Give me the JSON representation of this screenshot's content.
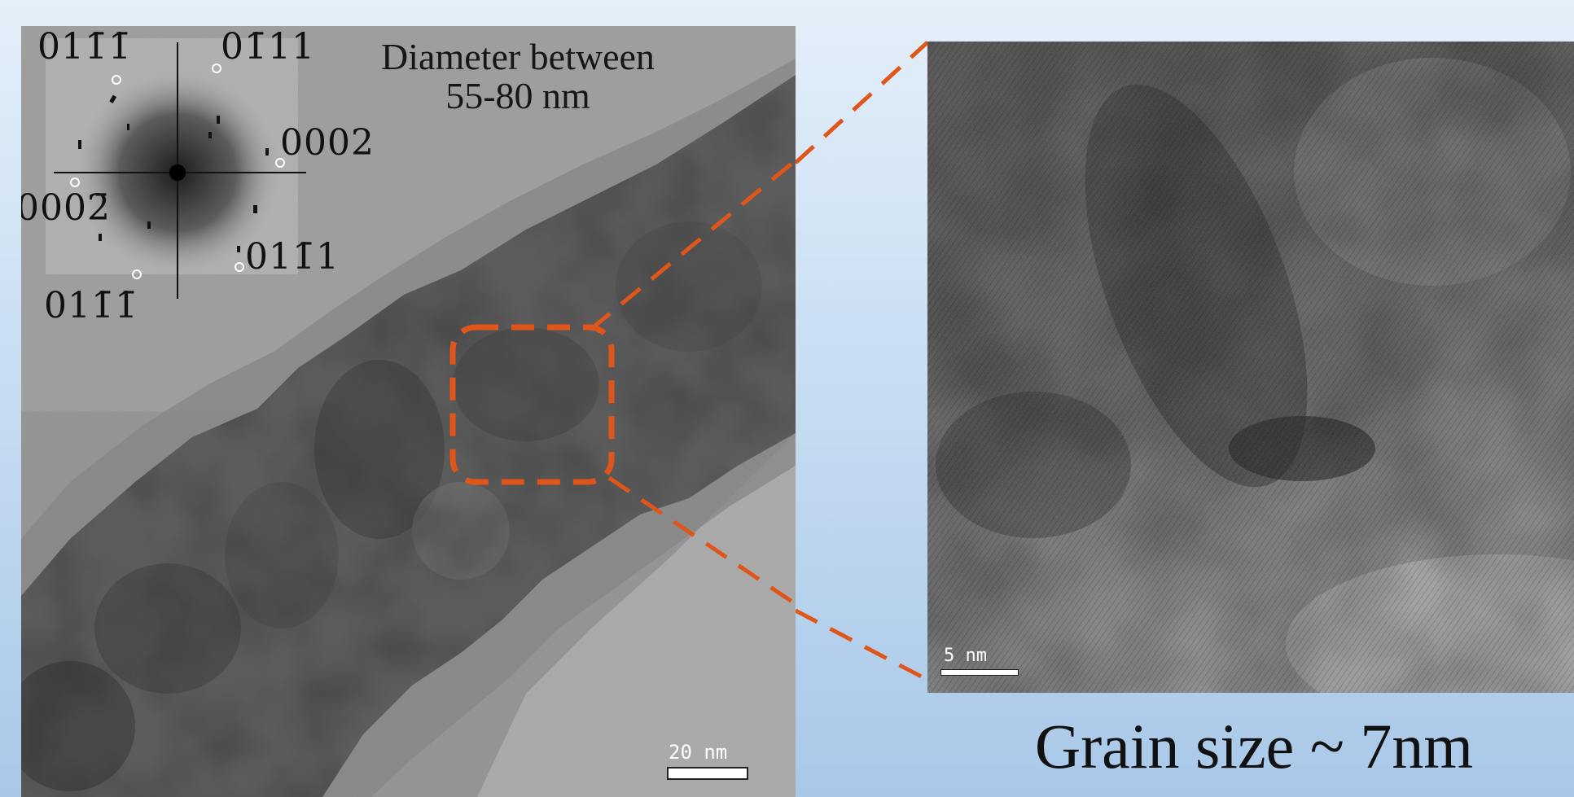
{
  "main_image": {
    "caption_line1": "Diameter between",
    "caption_line2": "55-80 nm",
    "scale_label": "20 nm",
    "diffraction_labels": {
      "top_left": "011̄1̄",
      "top_right": "01̄11",
      "right": "0002",
      "left": "0002̄",
      "lower_right": "011̄1",
      "bottom_left": "011̄1̄"
    }
  },
  "zoom_image": {
    "scale_label": "5 nm"
  },
  "bottom_caption": "Grain size ~ 7nm",
  "colors": {
    "callout": "#e0561a",
    "background_top": "#e4eff9",
    "background_bottom": "#a9c8e8"
  }
}
